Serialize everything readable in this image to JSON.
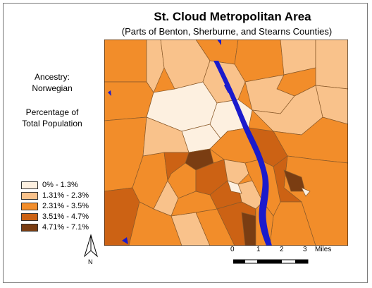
{
  "title": "St. Cloud Metropolitan Area",
  "subtitle": "(Parts of Benton, Sherburne, and Stearns Counties)",
  "ancestry_line1": "Ancestry:",
  "ancestry_line2": "Norwegian",
  "pct_line1": "Percentage of",
  "pct_line2": "Total Population",
  "legend": [
    {
      "label": "0% - 1.3%",
      "color": "#fdf0e0"
    },
    {
      "label": "1.31% - 2.3%",
      "color": "#f9c28b"
    },
    {
      "label": "2.31% - 3.5%",
      "color": "#f28d2a"
    },
    {
      "label": "3.51% - 4.7%",
      "color": "#cc6214"
    },
    {
      "label": "4.71% - 7.1%",
      "color": "#7a3d12"
    }
  ],
  "north_label": "N",
  "scale": {
    "ticks": [
      "0",
      "1",
      "2",
      "3"
    ],
    "unit": "Miles"
  },
  "water_color": "#1a1acc"
}
